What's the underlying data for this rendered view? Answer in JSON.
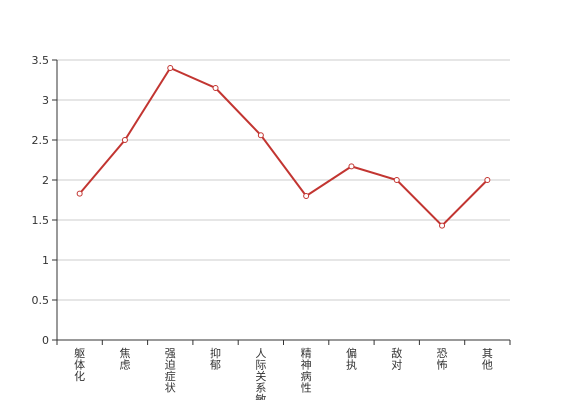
{
  "chart_data": {
    "type": "line",
    "categories": [
      "躯体化",
      "焦虑",
      "强迫症状",
      "抑郁",
      "人际关系敏感",
      "精神病性",
      "偏执",
      "敌对",
      "恐怖",
      "其他"
    ],
    "series": [
      {
        "color": "#c23531",
        "values": [
          1.83,
          2.5,
          3.4,
          3.15,
          2.56,
          1.8,
          2.17,
          2.0,
          1.43,
          2.0
        ]
      }
    ],
    "ylim": [
      0,
      3.5
    ],
    "yticks": [
      0,
      {
        "value": 0.5,
        "label": "0.5"
      },
      1,
      {
        "value": 1.5,
        "label": "1.5"
      },
      2,
      {
        "value": 2.5,
        "label": "2.5"
      },
      3,
      {
        "value": 3.5,
        "label": "3.5"
      }
    ],
    "grid": true
  }
}
